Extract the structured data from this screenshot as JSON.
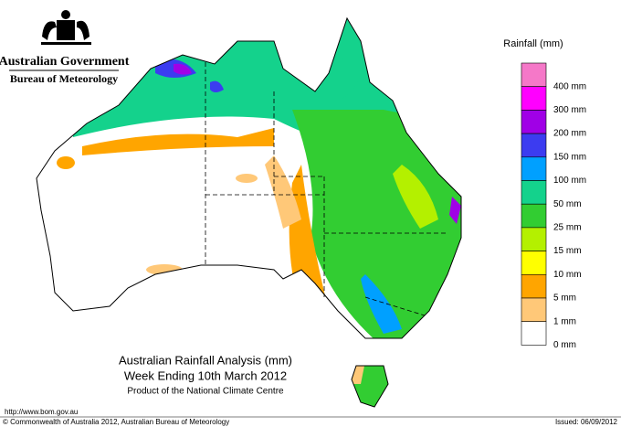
{
  "header": {
    "government": "Australian Government",
    "agency": "Bureau of Meteorology"
  },
  "title": "Australian Rainfall Analysis (mm)",
  "subtitle": "Week Ending 10th March 2012",
  "product": "Product of the National Climate Centre",
  "legend": {
    "title": "Rainfall (mm)",
    "items": [
      {
        "color": "#f578c8",
        "label": "400 mm"
      },
      {
        "color": "#ff00ff",
        "label": "300 mm"
      },
      {
        "color": "#a000e6",
        "label": "200 mm"
      },
      {
        "color": "#3c3cf0",
        "label": "150 mm"
      },
      {
        "color": "#00a0ff",
        "label": "100 mm"
      },
      {
        "color": "#14d28c",
        "label": "50 mm"
      },
      {
        "color": "#32cd32",
        "label": "25 mm"
      },
      {
        "color": "#b4f000",
        "label": "15 mm"
      },
      {
        "color": "#ffff00",
        "label": "10 mm"
      },
      {
        "color": "#ffa500",
        "label": "5 mm"
      },
      {
        "color": "#ffc878",
        "label": "1 mm"
      },
      {
        "color": "#ffffff",
        "label": "0 mm"
      }
    ]
  },
  "footer": {
    "url": "http://www.bom.gov.au",
    "copyright": "© Commonwealth of Australia 2012, Australian Bureau of Meteorology",
    "issued": "Issued: 06/09/2012"
  }
}
